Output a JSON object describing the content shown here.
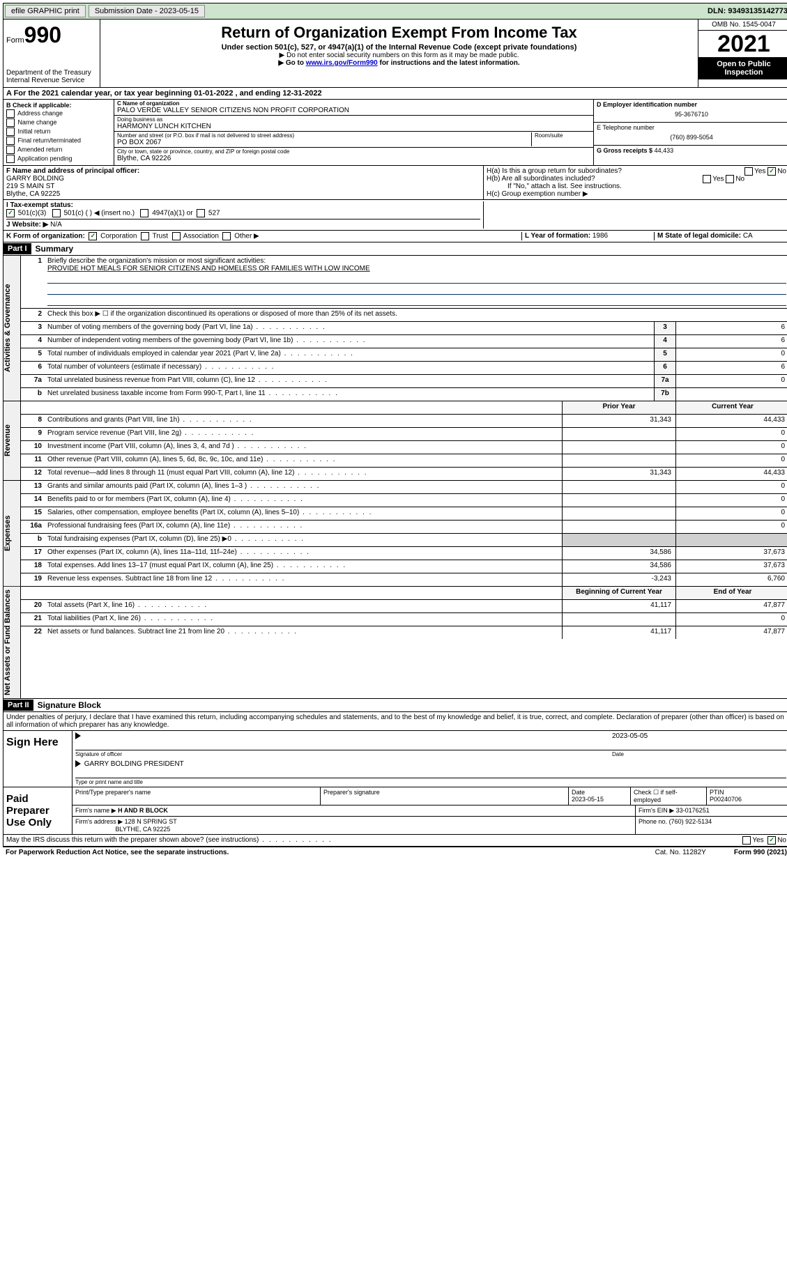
{
  "top_bar": {
    "efile_label": "efile GRAPHIC print",
    "submission_label": "Submission Date - 2023-05-15",
    "dln": "DLN: 93493135142773"
  },
  "header": {
    "form_prefix": "Form",
    "form_number": "990",
    "dept": "Department of the Treasury",
    "irs": "Internal Revenue Service",
    "title": "Return of Organization Exempt From Income Tax",
    "subtitle": "Under section 501(c), 527, or 4947(a)(1) of the Internal Revenue Code (except private foundations)",
    "note1": "▶ Do not enter social security numbers on this form as it may be made public.",
    "note2_pre": "▶ Go to ",
    "note2_link": "www.irs.gov/Form990",
    "note2_post": " for instructions and the latest information.",
    "omb": "OMB No. 1545-0047",
    "year": "2021",
    "open_public": "Open to Public Inspection"
  },
  "section_a": "A For the 2021 calendar year, or tax year beginning 01-01-2022   , and ending 12-31-2022",
  "box_b": {
    "label": "B Check if applicable:",
    "items": [
      "Address change",
      "Name change",
      "Initial return",
      "Final return/terminated",
      "Amended return",
      "Application pending"
    ]
  },
  "box_c": {
    "name_label": "C Name of organization",
    "name": "PALO VERDE VALLEY SENIOR CITIZENS NON PROFIT CORPORATION",
    "dba_label": "Doing business as",
    "dba": "HARMONY LUNCH KITCHEN",
    "addr_label": "Number and street (or P.O. box if mail is not delivered to street address)",
    "room_label": "Room/suite",
    "addr": "PO BOX 2067",
    "city_label": "City or town, state or province, country, and ZIP or foreign postal code",
    "city": "Blythe, CA  92226"
  },
  "box_d": {
    "label": "D Employer identification number",
    "ein": "95-3676710"
  },
  "box_e": {
    "label": "E Telephone number",
    "phone": "(760) 899-5054"
  },
  "box_g": {
    "label": "G Gross receipts $",
    "amount": "44,433"
  },
  "box_f": {
    "label": "F Name and address of principal officer:",
    "name": "GARRY BOLDING",
    "addr1": "219 S MAIN ST",
    "addr2": "Blythe, CA  92225"
  },
  "box_h": {
    "ha": "H(a)  Is this a group return for subordinates?",
    "hb": "H(b)  Are all subordinates included?",
    "hb_note": "If \"No,\" attach a list. See instructions.",
    "hc": "H(c)  Group exemption number ▶"
  },
  "box_i": {
    "label": "I   Tax-exempt status:",
    "opts": [
      "501(c)(3)",
      "501(c) (  ) ◀ (insert no.)",
      "4947(a)(1) or",
      "527"
    ]
  },
  "box_j": {
    "label": "J   Website: ▶",
    "value": "N/A"
  },
  "box_k": {
    "label": "K Form of organization:",
    "opts": [
      "Corporation",
      "Trust",
      "Association",
      "Other ▶"
    ]
  },
  "box_l": {
    "label": "L Year of formation:",
    "value": "1986"
  },
  "box_m": {
    "label": "M State of legal domicile:",
    "value": "CA"
  },
  "part1": {
    "header": "Part I",
    "title": "Summary",
    "q1": "Briefly describe the organization's mission or most significant activities:",
    "mission": "PROVIDE HOT MEALS FOR SENIOR CITIZENS AND HOMELESS OR FAMILIES WITH LOW INCOME",
    "q2": "Check this box ▶ ☐  if the organization discontinued its operations or disposed of more than 25% of its net assets.",
    "lines_gov": [
      {
        "n": "3",
        "d": "Number of voting members of the governing body (Part VI, line 1a)",
        "box": "3",
        "v": "6"
      },
      {
        "n": "4",
        "d": "Number of independent voting members of the governing body (Part VI, line 1b)",
        "box": "4",
        "v": "6"
      },
      {
        "n": "5",
        "d": "Total number of individuals employed in calendar year 2021 (Part V, line 2a)",
        "box": "5",
        "v": "0"
      },
      {
        "n": "6",
        "d": "Total number of volunteers (estimate if necessary)",
        "box": "6",
        "v": "6"
      },
      {
        "n": "7a",
        "d": "Total unrelated business revenue from Part VIII, column (C), line 12",
        "box": "7a",
        "v": "0"
      },
      {
        "n": "b",
        "d": "Net unrelated business taxable income from Form 990-T, Part I, line 11",
        "box": "7b",
        "v": ""
      }
    ],
    "col_prior": "Prior Year",
    "col_current": "Current Year",
    "lines_rev": [
      {
        "n": "8",
        "d": "Contributions and grants (Part VIII, line 1h)",
        "p": "31,343",
        "c": "44,433"
      },
      {
        "n": "9",
        "d": "Program service revenue (Part VIII, line 2g)",
        "p": "",
        "c": "0"
      },
      {
        "n": "10",
        "d": "Investment income (Part VIII, column (A), lines 3, 4, and 7d )",
        "p": "",
        "c": "0"
      },
      {
        "n": "11",
        "d": "Other revenue (Part VIII, column (A), lines 5, 6d, 8c, 9c, 10c, and 11e)",
        "p": "",
        "c": "0"
      },
      {
        "n": "12",
        "d": "Total revenue—add lines 8 through 11 (must equal Part VIII, column (A), line 12)",
        "p": "31,343",
        "c": "44,433"
      }
    ],
    "lines_exp": [
      {
        "n": "13",
        "d": "Grants and similar amounts paid (Part IX, column (A), lines 1–3 )",
        "p": "",
        "c": "0"
      },
      {
        "n": "14",
        "d": "Benefits paid to or for members (Part IX, column (A), line 4)",
        "p": "",
        "c": "0"
      },
      {
        "n": "15",
        "d": "Salaries, other compensation, employee benefits (Part IX, column (A), lines 5–10)",
        "p": "",
        "c": "0"
      },
      {
        "n": "16a",
        "d": "Professional fundraising fees (Part IX, column (A), line 11e)",
        "p": "",
        "c": "0"
      },
      {
        "n": "b",
        "d": "Total fundraising expenses (Part IX, column (D), line 25) ▶0",
        "p": "SHADE",
        "c": "SHADE"
      },
      {
        "n": "17",
        "d": "Other expenses (Part IX, column (A), lines 11a–11d, 11f–24e)",
        "p": "34,586",
        "c": "37,673"
      },
      {
        "n": "18",
        "d": "Total expenses. Add lines 13–17 (must equal Part IX, column (A), line 25)",
        "p": "34,586",
        "c": "37,673"
      },
      {
        "n": "19",
        "d": "Revenue less expenses. Subtract line 18 from line 12",
        "p": "-3,243",
        "c": "6,760"
      }
    ],
    "col_begin": "Beginning of Current Year",
    "col_end": "End of Year",
    "lines_net": [
      {
        "n": "20",
        "d": "Total assets (Part X, line 16)",
        "p": "41,117",
        "c": "47,877"
      },
      {
        "n": "21",
        "d": "Total liabilities (Part X, line 26)",
        "p": "",
        "c": "0"
      },
      {
        "n": "22",
        "d": "Net assets or fund balances. Subtract line 21 from line 20",
        "p": "41,117",
        "c": "47,877"
      }
    ]
  },
  "part2": {
    "header": "Part II",
    "title": "Signature Block",
    "declaration": "Under penalties of perjury, I declare that I have examined this return, including accompanying schedules and statements, and to the best of my knowledge and belief, it is true, correct, and complete. Declaration of preparer (other than officer) is based on all information of which preparer has any knowledge."
  },
  "sign": {
    "label": "Sign Here",
    "sig_label": "Signature of officer",
    "date_label": "Date",
    "date": "2023-05-05",
    "name_title": "GARRY BOLDING  PRESIDENT",
    "name_title_label": "Type or print name and title"
  },
  "preparer": {
    "label": "Paid Preparer Use Only",
    "h1": "Print/Type preparer's name",
    "h2": "Preparer's signature",
    "h3": "Date",
    "h3v": "2023-05-15",
    "h4": "Check ☐ if self-employed",
    "h5": "PTIN",
    "h5v": "P00240706",
    "firm_label": "Firm's name    ▶",
    "firm": "H AND R BLOCK",
    "firm_ein_label": "Firm's EIN ▶",
    "firm_ein": "33-0176251",
    "firm_addr_label": "Firm's address ▶",
    "firm_addr1": "128 N SPRING ST",
    "firm_addr2": "BLYTHE, CA  92225",
    "firm_phone_label": "Phone no.",
    "firm_phone": "(760) 922-5134",
    "discuss": "May the IRS discuss this return with the preparer shown above? (see instructions)"
  },
  "footer": {
    "left": "For Paperwork Reduction Act Notice, see the separate instructions.",
    "mid": "Cat. No. 11282Y",
    "right": "Form 990 (2021)"
  },
  "sidebar_labels": {
    "gov": "Activities & Governance",
    "rev": "Revenue",
    "exp": "Expenses",
    "net": "Net Assets or Fund Balances"
  }
}
